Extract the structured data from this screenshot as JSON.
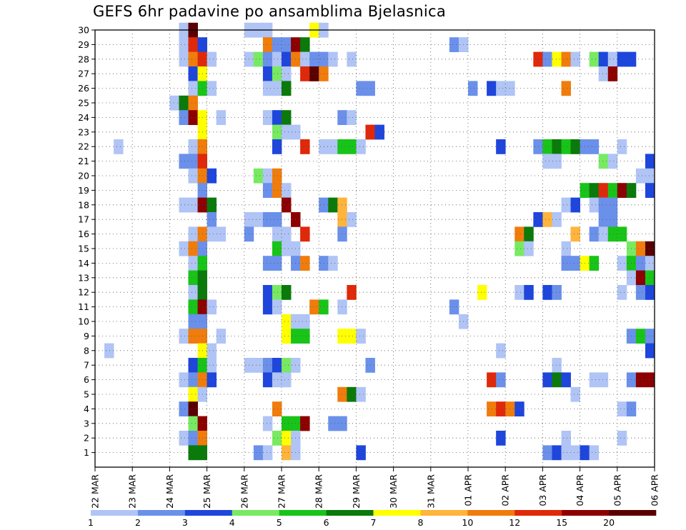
{
  "chart_data": {
    "type": "heatmap",
    "title": "GEFS 6hr padavine po ansamblima Bjelasnica",
    "xlabel": "",
    "ylabel": "",
    "x_ticks": [
      "22 MAR",
      "23 MAR",
      "24 MAR",
      "25 MAR",
      "26 MAR",
      "27 MAR",
      "28 MAR",
      "29 MAR",
      "30 MAR",
      "31 MAR",
      "01 APR",
      "02 APR",
      "03 APR",
      "04 APR",
      "05 APR",
      "06 APR"
    ],
    "x_range_days": [
      0,
      15
    ],
    "y_ticks": [
      1,
      2,
      3,
      4,
      5,
      6,
      7,
      8,
      9,
      10,
      11,
      12,
      13,
      14,
      15,
      16,
      17,
      18,
      19,
      20,
      21,
      22,
      23,
      24,
      25,
      26,
      27,
      28,
      29,
      30
    ],
    "y_range": [
      0,
      30
    ],
    "grid": true,
    "legend": {
      "position": "bottom",
      "labels": [
        "1",
        "2",
        "3",
        "4",
        "5",
        "6",
        "7",
        "8",
        "10",
        "12",
        "15",
        "20"
      ],
      "colors": [
        "#b0c4f5",
        "#6a90ea",
        "#1e46dc",
        "#78ea62",
        "#18c418",
        "#0a7a0a",
        "#ffff00",
        "#ffb43c",
        "#f07c0c",
        "#e0280a",
        "#8c0000",
        "#5a0000"
      ]
    },
    "bin_thresholds_mm": [
      1,
      2,
      3,
      4,
      5,
      6,
      7,
      8,
      10,
      12,
      15,
      20
    ],
    "cells_note": "each cell = [member (1-30), 6-hour step index from 22 MAR 00Z, color class 0-11]",
    "cells": [
      [
        30,
        9,
        0
      ],
      [
        30,
        10,
        11
      ],
      [
        30,
        16,
        0
      ],
      [
        30,
        17,
        0
      ],
      [
        30,
        18,
        0
      ],
      [
        30,
        23,
        6
      ],
      [
        30,
        24,
        0
      ],
      [
        29,
        9,
        0
      ],
      [
        29,
        10,
        9
      ],
      [
        29,
        11,
        2
      ],
      [
        29,
        18,
        8
      ],
      [
        29,
        19,
        1
      ],
      [
        29,
        20,
        1
      ],
      [
        29,
        21,
        10
      ],
      [
        29,
        22,
        5
      ],
      [
        29,
        38,
        1
      ],
      [
        29,
        39,
        0
      ],
      [
        28,
        9,
        0
      ],
      [
        28,
        10,
        8
      ],
      [
        28,
        11,
        9
      ],
      [
        28,
        12,
        0
      ],
      [
        28,
        16,
        0
      ],
      [
        28,
        17,
        3
      ],
      [
        28,
        18,
        1
      ],
      [
        28,
        19,
        0
      ],
      [
        28,
        20,
        2
      ],
      [
        28,
        21,
        8
      ],
      [
        28,
        22,
        0
      ],
      [
        28,
        23,
        1
      ],
      [
        28,
        24,
        1
      ],
      [
        28,
        25,
        0
      ],
      [
        28,
        27,
        0
      ],
      [
        28,
        47,
        9
      ],
      [
        28,
        48,
        1
      ],
      [
        28,
        49,
        6
      ],
      [
        28,
        50,
        8
      ],
      [
        28,
        51,
        0
      ],
      [
        28,
        53,
        3
      ],
      [
        28,
        54,
        2
      ],
      [
        28,
        55,
        0
      ],
      [
        28,
        56,
        2
      ],
      [
        28,
        57,
        2
      ],
      [
        27,
        10,
        2
      ],
      [
        27,
        11,
        6
      ],
      [
        27,
        18,
        2
      ],
      [
        27,
        19,
        3
      ],
      [
        27,
        20,
        0
      ],
      [
        27,
        22,
        9
      ],
      [
        27,
        23,
        11
      ],
      [
        27,
        24,
        8
      ],
      [
        27,
        54,
        0
      ],
      [
        27,
        55,
        10
      ],
      [
        26,
        10,
        0
      ],
      [
        26,
        11,
        4
      ],
      [
        26,
        12,
        0
      ],
      [
        26,
        18,
        0
      ],
      [
        26,
        19,
        0
      ],
      [
        26,
        20,
        5
      ],
      [
        26,
        28,
        1
      ],
      [
        26,
        29,
        1
      ],
      [
        26,
        40,
        1
      ],
      [
        26,
        42,
        2
      ],
      [
        26,
        43,
        0
      ],
      [
        26,
        44,
        0
      ],
      [
        26,
        50,
        8
      ],
      [
        25,
        8,
        0
      ],
      [
        25,
        9,
        5
      ],
      [
        25,
        10,
        8
      ],
      [
        24,
        9,
        1
      ],
      [
        24,
        10,
        10
      ],
      [
        24,
        11,
        6
      ],
      [
        24,
        13,
        0
      ],
      [
        24,
        18,
        0
      ],
      [
        24,
        19,
        2
      ],
      [
        24,
        20,
        5
      ],
      [
        24,
        26,
        1
      ],
      [
        24,
        27,
        0
      ],
      [
        23,
        11,
        6
      ],
      [
        23,
        19,
        3
      ],
      [
        23,
        20,
        0
      ],
      [
        23,
        21,
        0
      ],
      [
        23,
        29,
        9
      ],
      [
        23,
        30,
        2
      ],
      [
        22,
        2,
        0
      ],
      [
        22,
        10,
        0
      ],
      [
        22,
        11,
        8
      ],
      [
        22,
        19,
        2
      ],
      [
        22,
        22,
        9
      ],
      [
        22,
        24,
        0
      ],
      [
        22,
        25,
        0
      ],
      [
        22,
        26,
        4
      ],
      [
        22,
        27,
        4
      ],
      [
        22,
        28,
        0
      ],
      [
        22,
        43,
        2
      ],
      [
        22,
        47,
        1
      ],
      [
        22,
        48,
        4
      ],
      [
        22,
        49,
        5
      ],
      [
        22,
        50,
        4
      ],
      [
        22,
        51,
        5
      ],
      [
        22,
        52,
        1
      ],
      [
        22,
        53,
        1
      ],
      [
        22,
        56,
        0
      ],
      [
        21,
        9,
        1
      ],
      [
        21,
        10,
        1
      ],
      [
        21,
        11,
        9
      ],
      [
        21,
        48,
        0
      ],
      [
        21,
        49,
        0
      ],
      [
        21,
        54,
        3
      ],
      [
        21,
        55,
        0
      ],
      [
        21,
        59,
        2
      ],
      [
        20,
        10,
        0
      ],
      [
        20,
        11,
        8
      ],
      [
        20,
        12,
        2
      ],
      [
        20,
        17,
        3
      ],
      [
        20,
        18,
        0
      ],
      [
        20,
        19,
        8
      ],
      [
        20,
        58,
        0
      ],
      [
        20,
        59,
        0
      ],
      [
        19,
        11,
        1
      ],
      [
        19,
        18,
        1
      ],
      [
        19,
        19,
        8
      ],
      [
        19,
        20,
        0
      ],
      [
        19,
        52,
        4
      ],
      [
        19,
        53,
        5
      ],
      [
        19,
        54,
        9
      ],
      [
        19,
        55,
        4
      ],
      [
        19,
        56,
        10
      ],
      [
        19,
        57,
        5
      ],
      [
        19,
        59,
        2
      ],
      [
        18,
        9,
        0
      ],
      [
        18,
        10,
        0
      ],
      [
        18,
        11,
        10
      ],
      [
        18,
        12,
        5
      ],
      [
        18,
        20,
        10
      ],
      [
        18,
        24,
        1
      ],
      [
        18,
        25,
        5
      ],
      [
        18,
        26,
        7
      ],
      [
        18,
        50,
        0
      ],
      [
        18,
        51,
        2
      ],
      [
        18,
        53,
        0
      ],
      [
        18,
        54,
        1
      ],
      [
        18,
        55,
        1
      ],
      [
        17,
        12,
        1
      ],
      [
        17,
        16,
        0
      ],
      [
        17,
        17,
        0
      ],
      [
        17,
        18,
        1
      ],
      [
        17,
        19,
        1
      ],
      [
        17,
        21,
        10
      ],
      [
        17,
        26,
        7
      ],
      [
        17,
        27,
        0
      ],
      [
        17,
        47,
        2
      ],
      [
        17,
        48,
        7
      ],
      [
        17,
        49,
        0
      ],
      [
        17,
        54,
        1
      ],
      [
        17,
        55,
        1
      ],
      [
        16,
        10,
        0
      ],
      [
        16,
        11,
        8
      ],
      [
        16,
        12,
        0
      ],
      [
        16,
        13,
        0
      ],
      [
        16,
        16,
        1
      ],
      [
        16,
        19,
        0
      ],
      [
        16,
        20,
        0
      ],
      [
        16,
        22,
        9
      ],
      [
        16,
        26,
        1
      ],
      [
        16,
        45,
        8
      ],
      [
        16,
        46,
        5
      ],
      [
        16,
        51,
        7
      ],
      [
        16,
        53,
        1
      ],
      [
        16,
        54,
        0
      ],
      [
        16,
        55,
        4
      ],
      [
        16,
        56,
        4
      ],
      [
        15,
        9,
        0
      ],
      [
        15,
        10,
        8
      ],
      [
        15,
        11,
        1
      ],
      [
        15,
        19,
        4
      ],
      [
        15,
        20,
        0
      ],
      [
        15,
        21,
        0
      ],
      [
        15,
        45,
        3
      ],
      [
        15,
        46,
        0
      ],
      [
        15,
        50,
        0
      ],
      [
        15,
        57,
        3
      ],
      [
        15,
        58,
        8
      ],
      [
        15,
        59,
        11
      ],
      [
        14,
        10,
        0
      ],
      [
        14,
        11,
        4
      ],
      [
        14,
        18,
        1
      ],
      [
        14,
        19,
        1
      ],
      [
        14,
        21,
        1
      ],
      [
        14,
        22,
        8
      ],
      [
        14,
        24,
        1
      ],
      [
        14,
        25,
        0
      ],
      [
        14,
        50,
        1
      ],
      [
        14,
        51,
        1
      ],
      [
        14,
        52,
        6
      ],
      [
        14,
        53,
        4
      ],
      [
        14,
        56,
        0
      ],
      [
        14,
        57,
        4
      ],
      [
        14,
        58,
        1
      ],
      [
        14,
        59,
        0
      ],
      [
        13,
        10,
        4
      ],
      [
        13,
        11,
        5
      ],
      [
        13,
        57,
        0
      ],
      [
        13,
        58,
        10
      ],
      [
        13,
        59,
        4
      ],
      [
        12,
        10,
        0
      ],
      [
        12,
        11,
        5
      ],
      [
        12,
        18,
        2
      ],
      [
        12,
        19,
        3
      ],
      [
        12,
        20,
        5
      ],
      [
        12,
        27,
        9
      ],
      [
        12,
        41,
        6
      ],
      [
        12,
        45,
        0
      ],
      [
        12,
        46,
        2
      ],
      [
        12,
        48,
        2
      ],
      [
        12,
        49,
        1
      ],
      [
        12,
        56,
        0
      ],
      [
        12,
        58,
        1
      ],
      [
        12,
        59,
        2
      ],
      [
        11,
        10,
        4
      ],
      [
        11,
        11,
        10
      ],
      [
        11,
        12,
        0
      ],
      [
        11,
        18,
        2
      ],
      [
        11,
        19,
        0
      ],
      [
        11,
        23,
        8
      ],
      [
        11,
        24,
        4
      ],
      [
        11,
        26,
        0
      ],
      [
        11,
        38,
        1
      ],
      [
        10,
        10,
        1
      ],
      [
        10,
        11,
        1
      ],
      [
        10,
        20,
        6
      ],
      [
        10,
        21,
        0
      ],
      [
        10,
        22,
        0
      ],
      [
        10,
        39,
        0
      ],
      [
        9,
        9,
        0
      ],
      [
        9,
        10,
        8
      ],
      [
        9,
        11,
        8
      ],
      [
        9,
        13,
        0
      ],
      [
        9,
        20,
        6
      ],
      [
        9,
        21,
        4
      ],
      [
        9,
        22,
        4
      ],
      [
        9,
        26,
        6
      ],
      [
        9,
        27,
        6
      ],
      [
        9,
        28,
        0
      ],
      [
        9,
        57,
        1
      ],
      [
        9,
        58,
        4
      ],
      [
        9,
        59,
        1
      ],
      [
        8,
        1,
        0
      ],
      [
        8,
        11,
        6
      ],
      [
        8,
        12,
        0
      ],
      [
        8,
        43,
        0
      ],
      [
        8,
        59,
        2
      ],
      [
        7,
        10,
        2
      ],
      [
        7,
        11,
        4
      ],
      [
        7,
        12,
        0
      ],
      [
        7,
        16,
        0
      ],
      [
        7,
        17,
        0
      ],
      [
        7,
        18,
        1
      ],
      [
        7,
        19,
        2
      ],
      [
        7,
        20,
        3
      ],
      [
        7,
        21,
        0
      ],
      [
        7,
        29,
        1
      ],
      [
        7,
        49,
        0
      ],
      [
        6,
        9,
        0
      ],
      [
        6,
        10,
        1
      ],
      [
        6,
        11,
        8
      ],
      [
        6,
        12,
        2
      ],
      [
        6,
        18,
        2
      ],
      [
        6,
        19,
        0
      ],
      [
        6,
        20,
        0
      ],
      [
        6,
        42,
        9
      ],
      [
        6,
        43,
        1
      ],
      [
        6,
        48,
        2
      ],
      [
        6,
        49,
        5
      ],
      [
        6,
        50,
        2
      ],
      [
        6,
        53,
        0
      ],
      [
        6,
        54,
        0
      ],
      [
        6,
        57,
        1
      ],
      [
        6,
        58,
        10
      ],
      [
        6,
        59,
        10
      ],
      [
        5,
        10,
        6
      ],
      [
        5,
        11,
        0
      ],
      [
        5,
        26,
        8
      ],
      [
        5,
        27,
        5
      ],
      [
        5,
        28,
        0
      ],
      [
        5,
        51,
        0
      ],
      [
        4,
        9,
        1
      ],
      [
        4,
        10,
        11
      ],
      [
        4,
        19,
        8
      ],
      [
        4,
        42,
        8
      ],
      [
        4,
        43,
        9
      ],
      [
        4,
        44,
        8
      ],
      [
        4,
        45,
        2
      ],
      [
        4,
        56,
        0
      ],
      [
        4,
        57,
        1
      ],
      [
        3,
        10,
        3
      ],
      [
        3,
        11,
        10
      ],
      [
        3,
        18,
        0
      ],
      [
        3,
        20,
        4
      ],
      [
        3,
        21,
        4
      ],
      [
        3,
        22,
        10
      ],
      [
        3,
        25,
        1
      ],
      [
        3,
        26,
        1
      ],
      [
        2,
        9,
        0
      ],
      [
        2,
        10,
        1
      ],
      [
        2,
        11,
        8
      ],
      [
        2,
        19,
        3
      ],
      [
        2,
        20,
        6
      ],
      [
        2,
        21,
        0
      ],
      [
        2,
        43,
        2
      ],
      [
        2,
        50,
        0
      ],
      [
        2,
        56,
        0
      ],
      [
        1,
        10,
        5
      ],
      [
        1,
        11,
        5
      ],
      [
        1,
        17,
        1
      ],
      [
        1,
        18,
        0
      ],
      [
        1,
        20,
        7
      ],
      [
        1,
        21,
        0
      ],
      [
        1,
        28,
        2
      ],
      [
        1,
        48,
        1
      ],
      [
        1,
        49,
        2
      ],
      [
        1,
        50,
        0
      ],
      [
        1,
        51,
        0
      ],
      [
        1,
        52,
        2
      ],
      [
        1,
        53,
        0
      ]
    ]
  }
}
